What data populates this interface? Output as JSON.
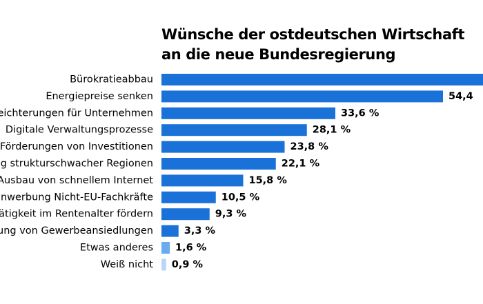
{
  "chart_data": {
    "type": "bar",
    "orientation": "horizontal",
    "title_lines": [
      "Wünsche der ostdeutschen Wirtschaft",
      "an die neue Bundesregierung"
    ],
    "categories": [
      "Bürokratieabbau",
      "Energiepreise senken",
      "eichterungen für Unternehmen",
      "Digitale Verwaltungsprozesse",
      "Förderungen von Investitionen",
      "ng strukturschwacher Regionen",
      "Ausbau von schnellem Internet",
      "nwerbung Nicht-EU-Fachkräfte",
      "ätigkeit im Rentenalter fördern",
      "ung von Gewerbeansiedlungen",
      "Etwas anderes",
      "Weiß nicht"
    ],
    "values": [
      null,
      54.4,
      33.6,
      28.1,
      23.8,
      22.1,
      15.8,
      10.5,
      9.3,
      3.3,
      1.6,
      0.9
    ],
    "value_labels": [
      "",
      "54,4",
      "33,6 %",
      "28,1 %",
      "23,8 %",
      "22,1 %",
      "15,8 %",
      "10,5 %",
      "9,3 %",
      "3,3 %",
      "1,6 %",
      "0,9 %"
    ],
    "colors": [
      "#1a72d8",
      "#1a72d8",
      "#1a72d8",
      "#1a72d8",
      "#1a72d8",
      "#1a72d8",
      "#1a72d8",
      "#1a72d8",
      "#1a72d8",
      "#1a72d8",
      "#6aaaee",
      "#b8d6f7"
    ],
    "xlim": [
      0,
      80
    ]
  }
}
